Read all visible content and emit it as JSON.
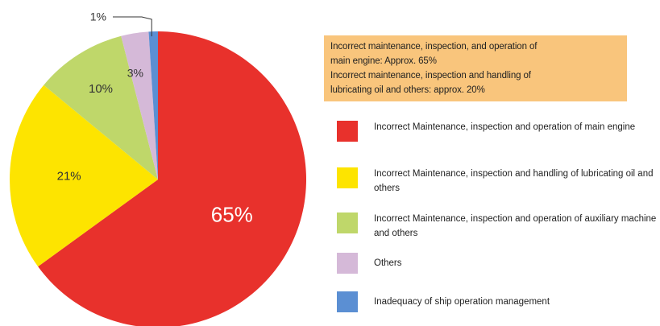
{
  "annotation": {
    "lines": [
      "Incorrect maintenance, inspection, and operation of",
      "main engine: Approx. 65%",
      "Incorrect maintenance, inspection  and  handling of",
      "lubricating oil and others: approx. 20%"
    ]
  },
  "chart_data": {
    "type": "pie",
    "title": "",
    "legend_position": "right",
    "slices": [
      {
        "label": "Incorrect Maintenance, inspection and operation of main engine",
        "value": 65,
        "value_label": "65%",
        "color": "#e8312c"
      },
      {
        "label": "Incorrect Maintenance, inspection and handling of lubricating oil and others",
        "value": 21,
        "value_label": "21%",
        "color": "#fde400"
      },
      {
        "label": "Incorrect Maintenance, inspection and operation of auxiliary machine and others",
        "value": 10,
        "value_label": "10%",
        "color": "#bfd76a"
      },
      {
        "label": "Others",
        "value": 3,
        "value_label": "3%",
        "color": "#d5b9d8"
      },
      {
        "label": "Inadequacy of ship operation management",
        "value": 1,
        "value_label": "1%",
        "color": "#5b8fd3"
      }
    ]
  }
}
